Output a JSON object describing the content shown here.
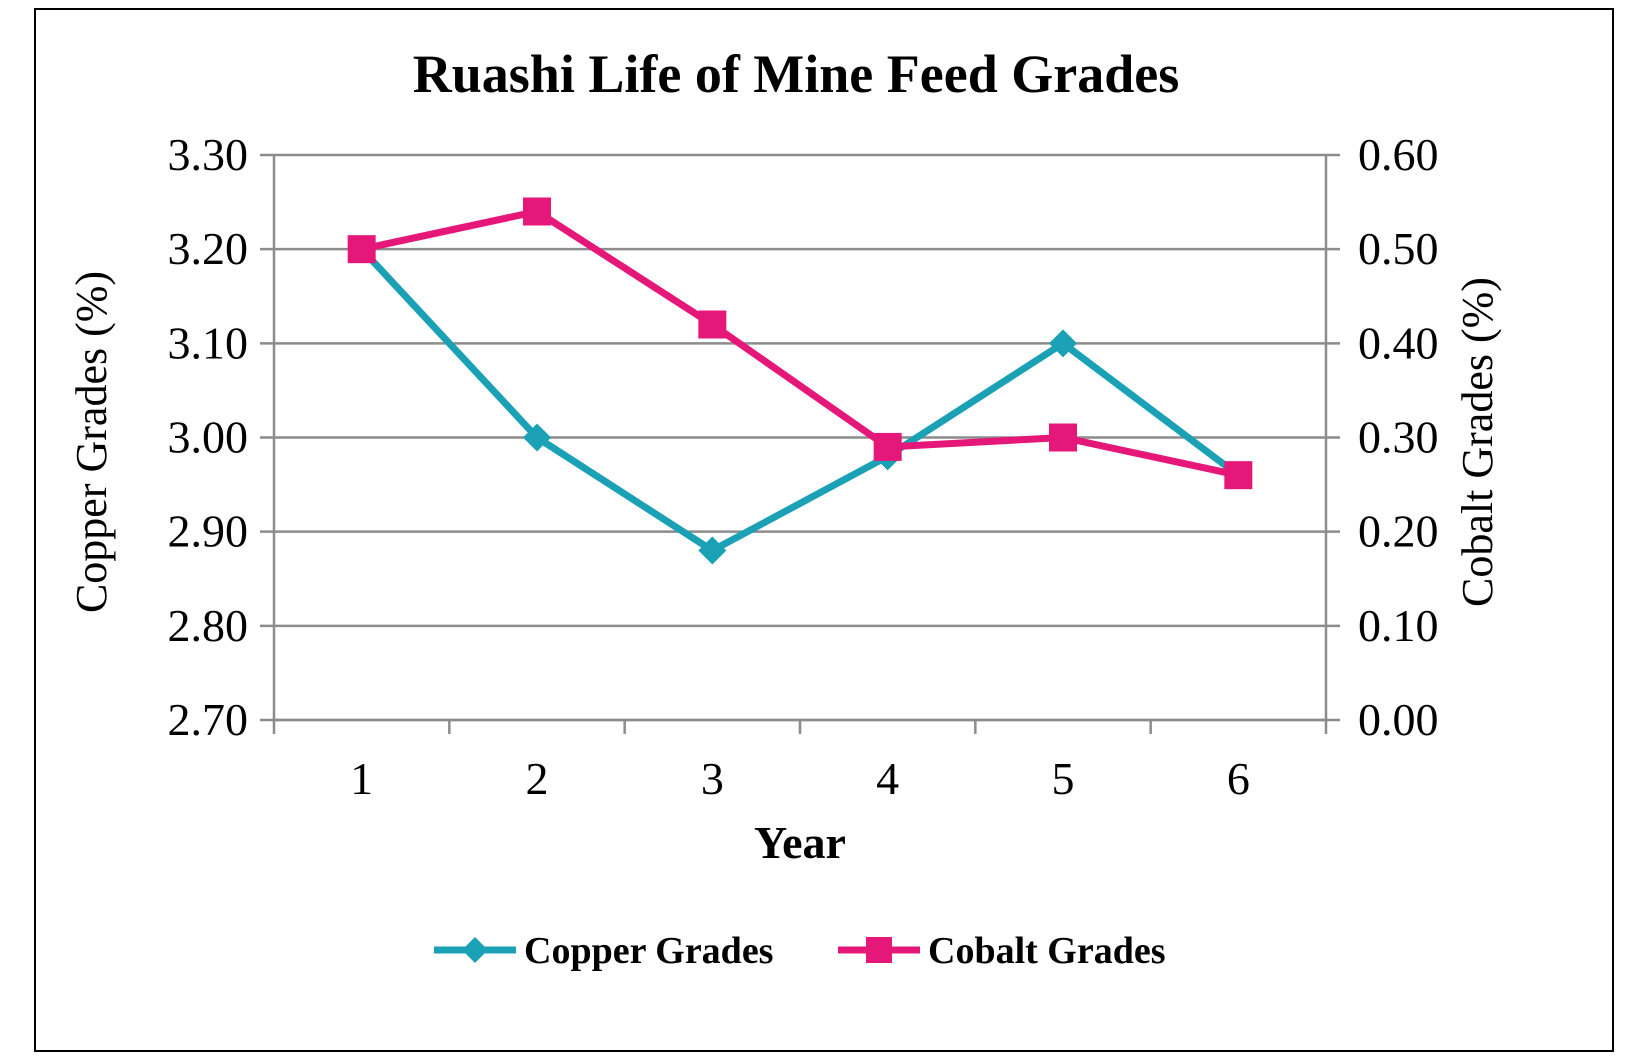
{
  "chart_data": {
    "type": "line",
    "title": "Ruashi Life of Mine Feed Grades",
    "xlabel": "Year",
    "ylabel_left": "Copper Grades (%)",
    "ylabel_right": "Cobalt Grades (%)",
    "categories": [
      "1",
      "2",
      "3",
      "4",
      "5",
      "6"
    ],
    "ylim_left": [
      2.7,
      3.3
    ],
    "ylim_right": [
      0.0,
      0.6
    ],
    "yticks_left": [
      "2.70",
      "2.80",
      "2.90",
      "3.00",
      "3.10",
      "3.20",
      "3.30"
    ],
    "yticks_right": [
      "0.00",
      "0.10",
      "0.20",
      "0.30",
      "0.40",
      "0.50",
      "0.60"
    ],
    "grid": true,
    "legend_position": "bottom",
    "series": [
      {
        "name": "Copper Grades",
        "axis": "left",
        "marker": "diamond",
        "color": "#1BA1B5",
        "values": [
          3.2,
          3.0,
          2.88,
          2.98,
          3.1,
          2.96
        ]
      },
      {
        "name": "Cobalt Grades",
        "axis": "right",
        "marker": "square",
        "color": "#E5187A",
        "values": [
          0.5,
          0.54,
          0.42,
          0.29,
          0.3,
          0.26
        ]
      }
    ]
  }
}
